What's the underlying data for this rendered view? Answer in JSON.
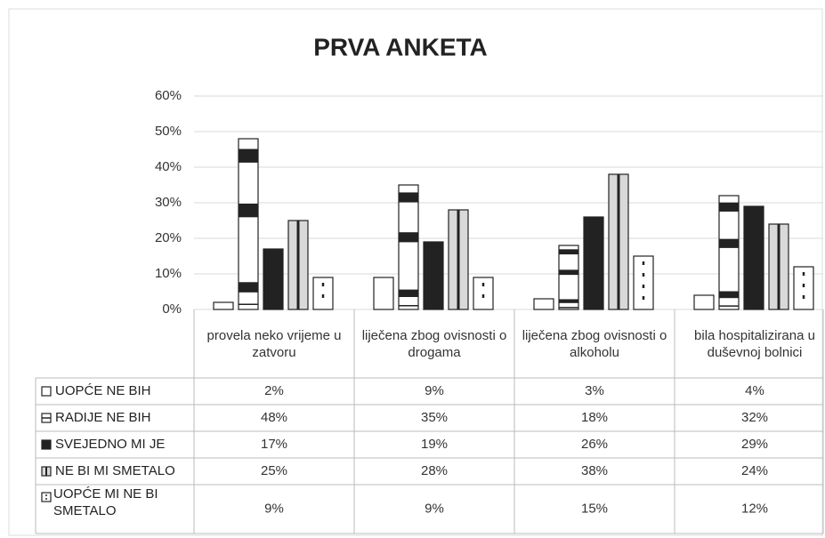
{
  "chart_data": {
    "type": "bar",
    "title": "PRVA ANKETA",
    "categories": [
      "provela neko vrijeme u zatvoru",
      "liječena zbog ovisnosti o drogama",
      "liječena zbog ovisnosti o alkoholu",
      "bila hospitalizirana u duševnoj bolnici"
    ],
    "series": [
      {
        "name": "UOPĆE NE BIH",
        "color": "#ffffff",
        "values": [
          2,
          9,
          3,
          4
        ],
        "value_labels": [
          "2%",
          "9%",
          "3%",
          "4%"
        ]
      },
      {
        "name": "RADIJE NE BIH",
        "color": "#ffffff",
        "values": [
          48,
          35,
          18,
          32
        ],
        "value_labels": [
          "48%",
          "35%",
          "18%",
          "32%"
        ]
      },
      {
        "name": "SVEJEDNO MI JE",
        "color": "#222222",
        "values": [
          17,
          19,
          26,
          29
        ],
        "value_labels": [
          "17%",
          "19%",
          "26%",
          "29%"
        ]
      },
      {
        "name": "NE BI MI SMETALO",
        "color": "#d9d9d9",
        "values": [
          25,
          28,
          38,
          24
        ],
        "value_labels": [
          "25%",
          "28%",
          "38%",
          "24%"
        ]
      },
      {
        "name": "UOPĆE MI NE BI SMETALO",
        "color": "#ffffff",
        "values": [
          9,
          9,
          15,
          12
        ],
        "value_labels": [
          "9%",
          "9%",
          "15%",
          "12%"
        ]
      }
    ],
    "ylim": [
      0,
      60
    ],
    "yticks": [
      {
        "value": 0,
        "label": "0%"
      },
      {
        "value": 10,
        "label": "10%"
      },
      {
        "value": 20,
        "label": "20%"
      },
      {
        "value": 30,
        "label": "30%"
      },
      {
        "value": 40,
        "label": "40%"
      },
      {
        "value": 50,
        "label": "50%"
      },
      {
        "value": 60,
        "label": "60%"
      }
    ],
    "grid": true
  }
}
